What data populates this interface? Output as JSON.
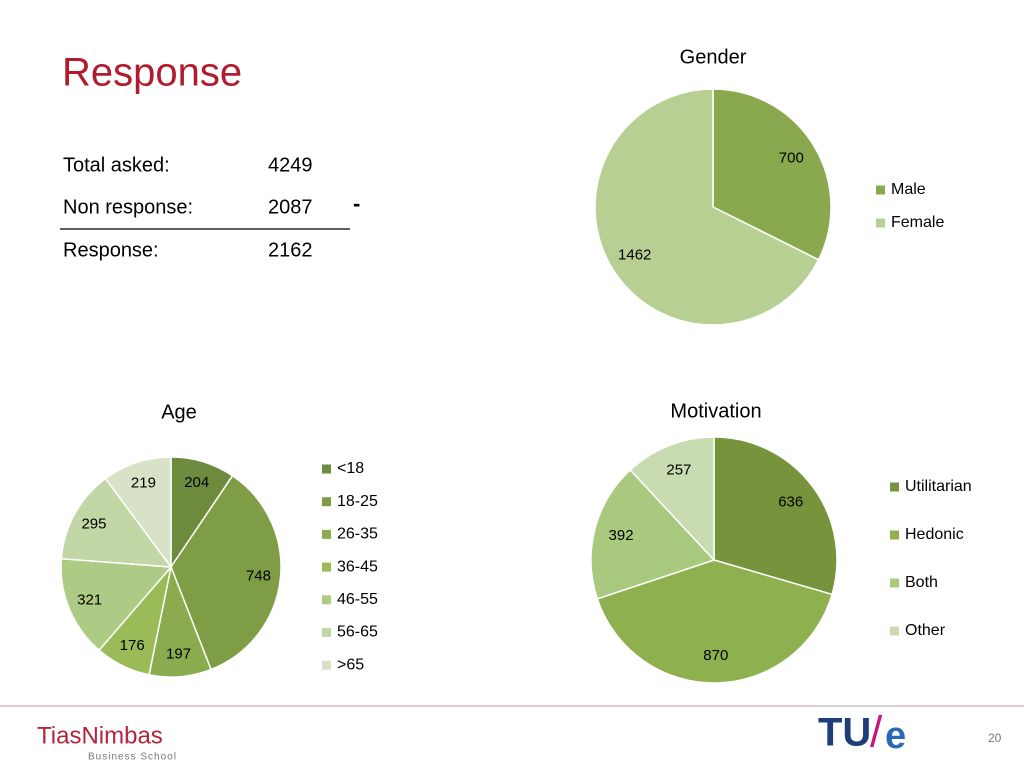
{
  "title": "Response",
  "table": {
    "rows": [
      [
        "Total asked:",
        4249
      ],
      [
        "Non response:",
        2087
      ],
      [
        "Response:",
        2162
      ]
    ],
    "operator": "-"
  },
  "chart_data": [
    {
      "type": "pie",
      "title": "Gender",
      "categories": [
        "Male",
        "Female"
      ],
      "values": [
        700,
        1462
      ],
      "colors": [
        "#8aa84e",
        "#b8cf94"
      ]
    },
    {
      "type": "pie",
      "title": "Age",
      "categories": [
        "<18",
        "18-25",
        "26-35",
        "36-45",
        "46-55",
        "56-65",
        ">65"
      ],
      "values": [
        204,
        748,
        197,
        176,
        321,
        295,
        219
      ],
      "colors": [
        "#6e8b3d",
        "#7f9d44",
        "#8aab4e",
        "#9bbb59",
        "#aecb85",
        "#c3d6a6",
        "#d7e2c6"
      ]
    },
    {
      "type": "pie",
      "title": "Motivation",
      "categories": [
        "Utilitarian",
        "Hedonic",
        "Both",
        "Other"
      ],
      "values": [
        636,
        870,
        392,
        257
      ],
      "colors": [
        "#77933c",
        "#8eb04f",
        "#a9c97e",
        "#c9dbb0"
      ]
    }
  ],
  "footer": {
    "logo_left": "TiasNimbas",
    "logo_left_sub": "Business School",
    "logo_right": [
      "TU",
      "/",
      "e"
    ],
    "page": 20
  }
}
